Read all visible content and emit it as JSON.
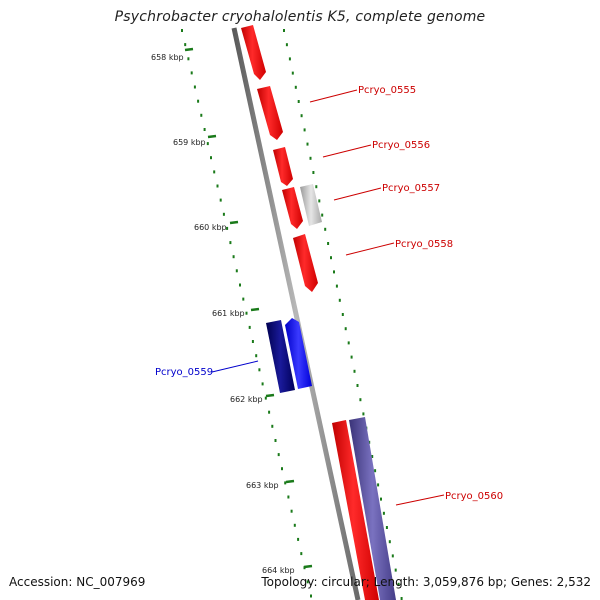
{
  "header": {
    "title": "Psychrobacter cryohalolentis K5, complete genome"
  },
  "footer": {
    "accession": "Accession: NC_007969",
    "summary": "Topology: circular; Length: 3,059,876 bp; Genes: 2,532"
  },
  "colors": {
    "forward_strand": "#ff0000",
    "forward_highlight": "#b3b3b3",
    "reverse_strand_dark": "#000080",
    "reverse_strand_light": "#0000ff",
    "reverse_strand_purple": "#5a4f9e",
    "backbone": "#808080",
    "ticks": "#1a7a1a",
    "label_red": "#cc0000",
    "label_blue": "#0000cc"
  },
  "scale": {
    "ticks": [
      "658 kbp",
      "659 kbp",
      "660 kbp",
      "661 kbp",
      "662 kbp",
      "663 kbp",
      "664 kbp"
    ]
  },
  "genes": [
    {
      "label": "Pcryo_0555",
      "color": "red"
    },
    {
      "label": "Pcryo_0556",
      "color": "red"
    },
    {
      "label": "Pcryo_0557",
      "color": "red"
    },
    {
      "label": "Pcryo_0558",
      "color": "red"
    },
    {
      "label": "Pcryo_0559",
      "color": "blue"
    },
    {
      "label": "Pcryo_0560",
      "color": "red"
    }
  ]
}
